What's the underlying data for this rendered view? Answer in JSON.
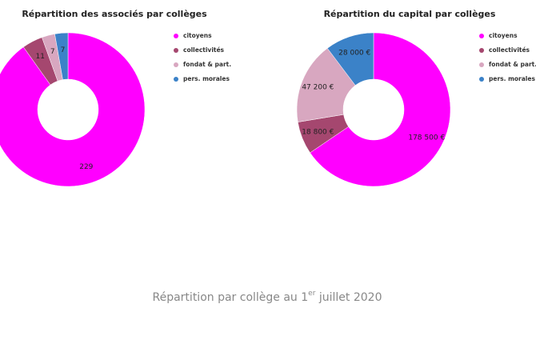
{
  "chart_data": [
    {
      "type": "pie",
      "donut": true,
      "title": "Répartition des associés par collèges",
      "categories": [
        "citoyens",
        "collectivités",
        "fondat & part.",
        "pers. morales"
      ],
      "values": [
        229,
        11,
        7,
        7
      ],
      "colors": [
        "#ff00ff",
        "#a5476f",
        "#d8a7c0",
        "#3b82c8"
      ],
      "legend": "right"
    },
    {
      "type": "pie",
      "donut": true,
      "title": "Répartition du capital par collèges",
      "categories": [
        "citoyens",
        "collectivités",
        "fondat & part.",
        "pers. morales"
      ],
      "values": [
        178500,
        18800,
        47200,
        28000
      ],
      "value_labels": [
        "178 500 €",
        "18 800 €",
        "47 200 €",
        "28 000 €"
      ],
      "colors": [
        "#ff00ff",
        "#a5476f",
        "#d8a7c0",
        "#3b82c8"
      ],
      "legend": "right"
    }
  ],
  "caption": {
    "parts": [
      "Répartition par collège au 1",
      "er",
      " juillet 2020"
    ]
  }
}
